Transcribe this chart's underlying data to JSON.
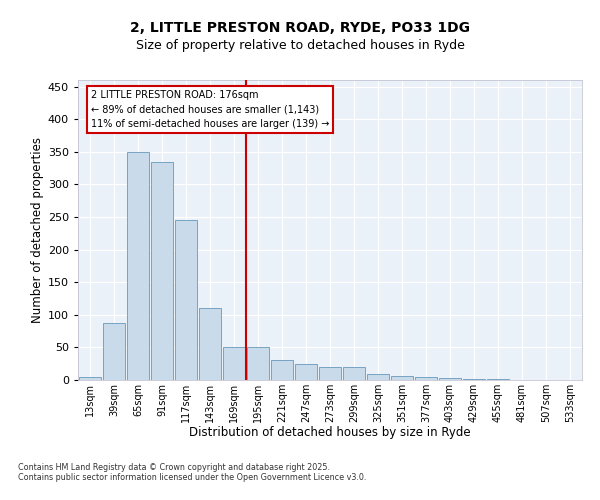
{
  "title_line1": "2, LITTLE PRESTON ROAD, RYDE, PO33 1DG",
  "title_line2": "Size of property relative to detached houses in Ryde",
  "xlabel": "Distribution of detached houses by size in Ryde",
  "ylabel": "Number of detached properties",
  "categories": [
    "13sqm",
    "39sqm",
    "65sqm",
    "91sqm",
    "117sqm",
    "143sqm",
    "169sqm",
    "195sqm",
    "221sqm",
    "247sqm",
    "273sqm",
    "299sqm",
    "325sqm",
    "351sqm",
    "377sqm",
    "403sqm",
    "429sqm",
    "455sqm",
    "481sqm",
    "507sqm",
    "533sqm"
  ],
  "values": [
    5,
    88,
    350,
    335,
    245,
    110,
    50,
    50,
    30,
    25,
    20,
    20,
    9,
    6,
    4,
    3,
    2,
    1,
    0.5,
    0.5,
    0.5
  ],
  "bar_color": "#c9daea",
  "bar_edge_color": "#6699bb",
  "vline_x": 6.5,
  "vline_color": "#cc0000",
  "annotation_text": "2 LITTLE PRESTON ROAD: 176sqm\n← 89% of detached houses are smaller (1,143)\n11% of semi-detached houses are larger (139) →",
  "annotation_box_color": "#cc0000",
  "annotation_fontsize": 7,
  "ylim": [
    0,
    460
  ],
  "yticks": [
    0,
    50,
    100,
    150,
    200,
    250,
    300,
    350,
    400,
    450
  ],
  "bg_color": "#eaf1f8",
  "footer_text": "Contains HM Land Registry data © Crown copyright and database right 2025.\nContains public sector information licensed under the Open Government Licence v3.0."
}
